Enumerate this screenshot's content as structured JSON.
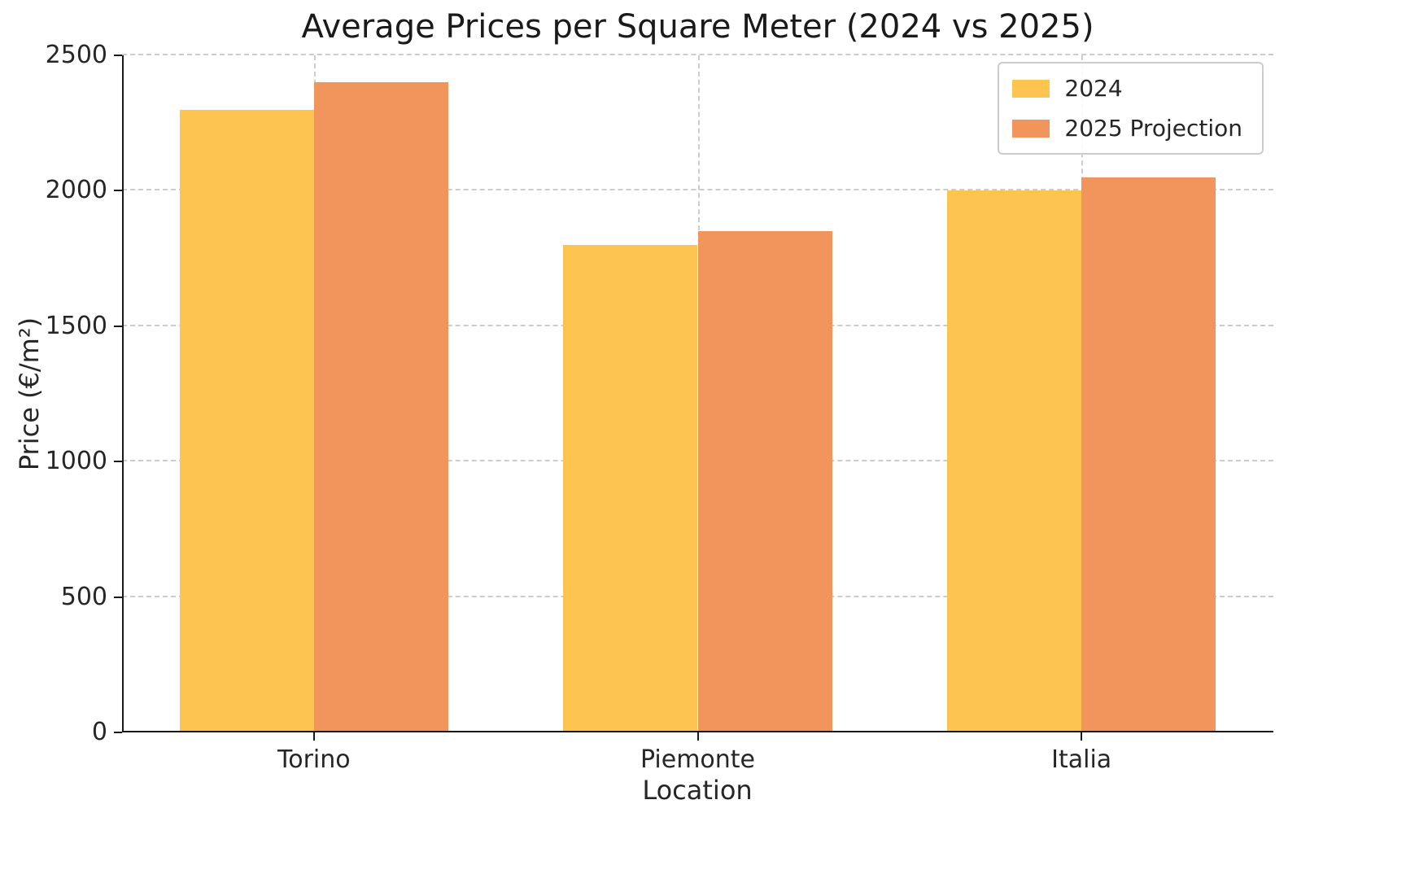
{
  "chart_data": {
    "type": "bar",
    "title": "Average Prices per Square Meter (2024 vs 2025)",
    "xlabel": "Location",
    "ylabel": "Price (€/m²)",
    "categories": [
      "Torino",
      "Piemonte",
      "Italia"
    ],
    "series": [
      {
        "name": "2024",
        "color": "#FDC44F",
        "values": [
          2300,
          1800,
          2000
        ]
      },
      {
        "name": "2025 Projection",
        "color": "#F2955C",
        "values": [
          2400,
          1850,
          2050
        ]
      }
    ],
    "ylim": [
      0,
      2500
    ],
    "yticks": [
      0,
      500,
      1000,
      1500,
      2000,
      2500
    ],
    "bar_width_fraction": 0.35,
    "grid": {
      "visible": true,
      "style": "dashed",
      "color": "#cccccc"
    },
    "legend": {
      "position": "upper right"
    }
  }
}
